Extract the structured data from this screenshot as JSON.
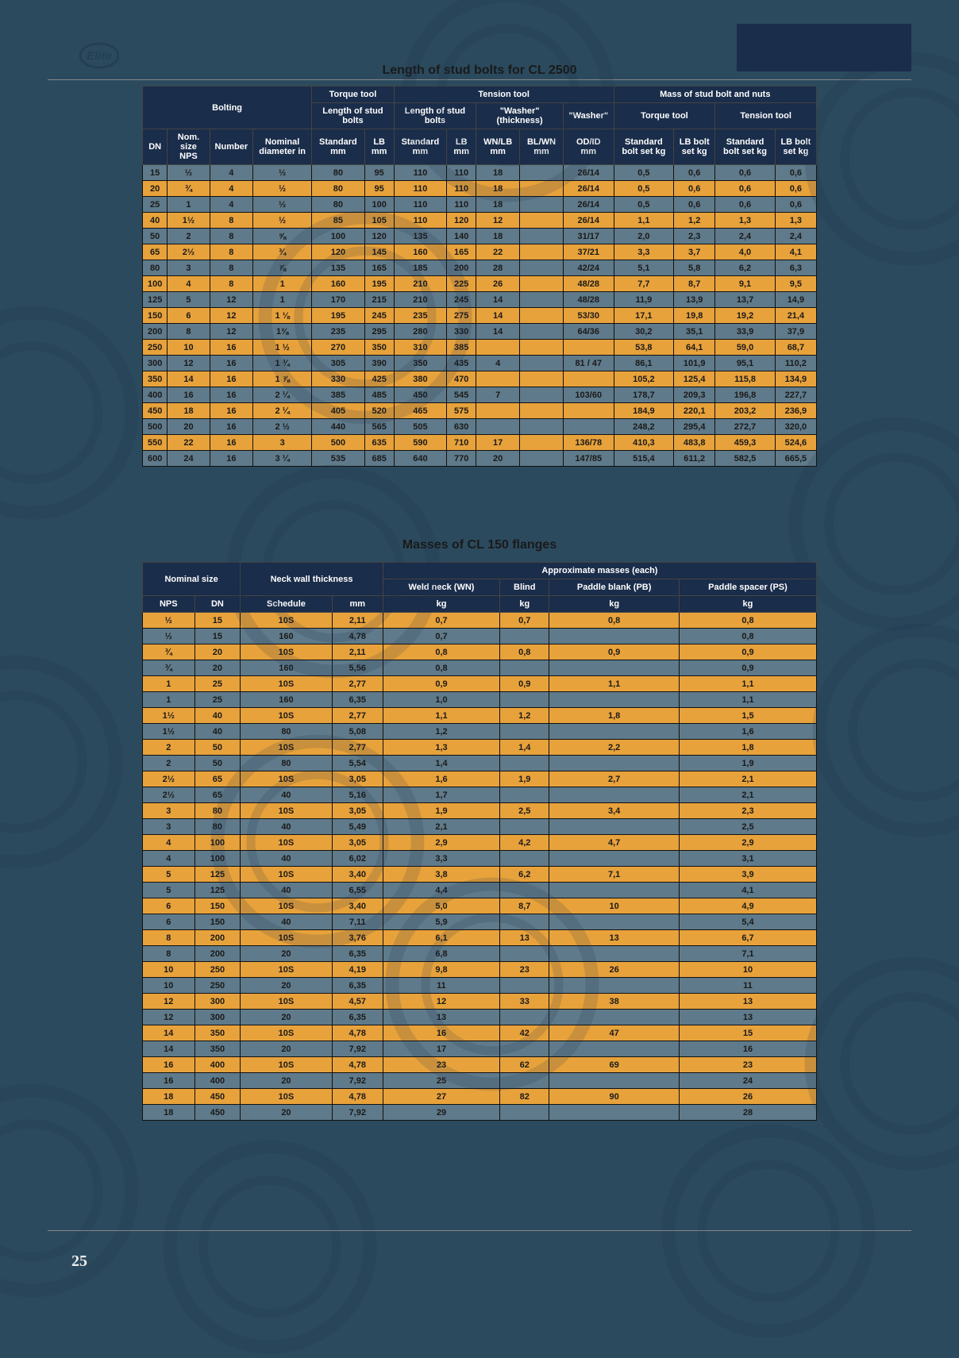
{
  "page_number": "25",
  "table1": {
    "title": "Length of stud bolts for CL 2500",
    "header_group1": [
      "Bolting",
      "Torque tool",
      "Tension tool",
      "Mass of stud bolt and nuts"
    ],
    "header_group2": [
      "Length of stud bolts",
      "Length of stud bolts",
      "\"Washer\" (thickness)",
      "\"Washer\"",
      "Torque tool",
      "Tension tool"
    ],
    "columns": [
      "DN",
      "Nom. size NPS",
      "Number",
      "Nominal diameter in",
      "Standard mm",
      "LB mm",
      "Standard mm",
      "LB mm",
      "WN/LB mm",
      "BL/WN mm",
      "OD/ID mm",
      "Standard bolt set kg",
      "LB bolt set kg",
      "Standard bolt set kg",
      "LB bolt set kg"
    ],
    "rows": [
      [
        "15",
        "½",
        "4",
        "½",
        "80",
        "95",
        "110",
        "110",
        "18",
        "",
        "26/14",
        "0,5",
        "0,6",
        "0,6",
        "0,6"
      ],
      [
        "20",
        "¾",
        "4",
        "½",
        "80",
        "95",
        "110",
        "110",
        "18",
        "",
        "26/14",
        "0,5",
        "0,6",
        "0,6",
        "0,6"
      ],
      [
        "25",
        "1",
        "4",
        "½",
        "80",
        "100",
        "110",
        "110",
        "18",
        "",
        "26/14",
        "0,5",
        "0,6",
        "0,6",
        "0,6"
      ],
      [
        "40",
        "1½",
        "8",
        "½",
        "85",
        "105",
        "110",
        "120",
        "12",
        "",
        "26/14",
        "1,1",
        "1,2",
        "1,3",
        "1,3"
      ],
      [
        "50",
        "2",
        "8",
        "⅝",
        "100",
        "120",
        "135",
        "140",
        "18",
        "",
        "31/17",
        "2,0",
        "2,3",
        "2,4",
        "2,4"
      ],
      [
        "65",
        "2½",
        "8",
        "¾",
        "120",
        "145",
        "160",
        "165",
        "22",
        "",
        "37/21",
        "3,3",
        "3,7",
        "4,0",
        "4,1"
      ],
      [
        "80",
        "3",
        "8",
        "⅞",
        "135",
        "165",
        "185",
        "200",
        "28",
        "",
        "42/24",
        "5,1",
        "5,8",
        "6,2",
        "6,3"
      ],
      [
        "100",
        "4",
        "8",
        "1",
        "160",
        "195",
        "210",
        "225",
        "26",
        "",
        "48/28",
        "7,7",
        "8,7",
        "9,1",
        "9,5"
      ],
      [
        "125",
        "5",
        "12",
        "1",
        "170",
        "215",
        "210",
        "245",
        "14",
        "",
        "48/28",
        "11,9",
        "13,9",
        "13,7",
        "14,9"
      ],
      [
        "150",
        "6",
        "12",
        "1 ⅛",
        "195",
        "245",
        "235",
        "275",
        "14",
        "",
        "53/30",
        "17,1",
        "19,8",
        "19,2",
        "21,4"
      ],
      [
        "200",
        "8",
        "12",
        "1⅜",
        "235",
        "295",
        "280",
        "330",
        "14",
        "",
        "64/36",
        "30,2",
        "35,1",
        "33,9",
        "37,9"
      ],
      [
        "250",
        "10",
        "16",
        "1 ½",
        "270",
        "350",
        "310",
        "385",
        "",
        "",
        "",
        "53,8",
        "64,1",
        "59,0",
        "68,7"
      ],
      [
        "300",
        "12",
        "16",
        "1 ¾",
        "305",
        "390",
        "350",
        "435",
        "4",
        "",
        "81 / 47",
        "86,1",
        "101,9",
        "95,1",
        "110,2"
      ],
      [
        "350",
        "14",
        "16",
        "1 ⅞",
        "330",
        "425",
        "380",
        "470",
        "",
        "",
        "",
        "105,2",
        "125,4",
        "115,8",
        "134,9"
      ],
      [
        "400",
        "16",
        "16",
        "2 ¼",
        "385",
        "485",
        "450",
        "545",
        "7",
        "",
        "103/60",
        "178,7",
        "209,3",
        "196,8",
        "227,7"
      ],
      [
        "450",
        "18",
        "16",
        "2 ¼",
        "405",
        "520",
        "465",
        "575",
        "",
        "",
        "",
        "184,9",
        "220,1",
        "203,2",
        "236,9"
      ],
      [
        "500",
        "20",
        "16",
        "2 ½",
        "440",
        "565",
        "505",
        "630",
        "",
        "",
        "",
        "248,2",
        "295,4",
        "272,7",
        "320,0"
      ],
      [
        "550",
        "22",
        "16",
        "3",
        "500",
        "635",
        "590",
        "710",
        "17",
        "",
        "136/78",
        "410,3",
        "483,8",
        "459,3",
        "524,6"
      ],
      [
        "600",
        "24",
        "16",
        "3 ¼",
        "535",
        "685",
        "640",
        "770",
        "20",
        "",
        "147/85",
        "515,4",
        "611,2",
        "582,5",
        "665,5"
      ]
    ]
  },
  "table2": {
    "title": "Masses of CL 150 flanges",
    "header_group1": [
      "Nominal size",
      "Neck wall thickness",
      "Approximate masses (each)"
    ],
    "header_sub": [
      "Weld neck (WN)",
      "Blind",
      "Paddle blank (PB)",
      "Paddle spacer (PS)"
    ],
    "columns": [
      "NPS",
      "DN",
      "Schedule",
      "mm",
      "kg",
      "kg",
      "kg",
      "kg"
    ],
    "rows": [
      [
        "½",
        "15",
        "10S",
        "2,11",
        "0,7",
        "0,7",
        "0,8",
        "0,8"
      ],
      [
        "½",
        "15",
        "160",
        "4,78",
        "0,7",
        "",
        "",
        "0,8"
      ],
      [
        "¾",
        "20",
        "10S",
        "2,11",
        "0,8",
        "0,8",
        "0,9",
        "0,9"
      ],
      [
        "¾",
        "20",
        "160",
        "5,56",
        "0,8",
        "",
        "",
        "0,9"
      ],
      [
        "1",
        "25",
        "10S",
        "2,77",
        "0,9",
        "0,9",
        "1,1",
        "1,1"
      ],
      [
        "1",
        "25",
        "160",
        "6,35",
        "1,0",
        "",
        "",
        "1,1"
      ],
      [
        "1½",
        "40",
        "10S",
        "2,77",
        "1,1",
        "1,2",
        "1,8",
        "1,5"
      ],
      [
        "1½",
        "40",
        "80",
        "5,08",
        "1,2",
        "",
        "",
        "1,6"
      ],
      [
        "2",
        "50",
        "10S",
        "2,77",
        "1,3",
        "1,4",
        "2,2",
        "1,8"
      ],
      [
        "2",
        "50",
        "80",
        "5,54",
        "1,4",
        "",
        "",
        "1,9"
      ],
      [
        "2½",
        "65",
        "10S",
        "3,05",
        "1,6",
        "1,9",
        "2,7",
        "2,1"
      ],
      [
        "2½",
        "65",
        "40",
        "5,16",
        "1,7",
        "",
        "",
        "2,1"
      ],
      [
        "3",
        "80",
        "10S",
        "3,05",
        "1,9",
        "2,5",
        "3,4",
        "2,3"
      ],
      [
        "3",
        "80",
        "40",
        "5,49",
        "2,1",
        "",
        "",
        "2,5"
      ],
      [
        "4",
        "100",
        "10S",
        "3,05",
        "2,9",
        "4,2",
        "4,7",
        "2,9"
      ],
      [
        "4",
        "100",
        "40",
        "6,02",
        "3,3",
        "",
        "",
        "3,1"
      ],
      [
        "5",
        "125",
        "10S",
        "3,40",
        "3,8",
        "6,2",
        "7,1",
        "3,9"
      ],
      [
        "5",
        "125",
        "40",
        "6,55",
        "4,4",
        "",
        "",
        "4,1"
      ],
      [
        "6",
        "150",
        "10S",
        "3,40",
        "5,0",
        "8,7",
        "10",
        "4,9"
      ],
      [
        "6",
        "150",
        "40",
        "7,11",
        "5,9",
        "",
        "",
        "5,4"
      ],
      [
        "8",
        "200",
        "10S",
        "3,76",
        "6,1",
        "13",
        "13",
        "6,7"
      ],
      [
        "8",
        "200",
        "20",
        "6,35",
        "6,8",
        "",
        "",
        "7,1"
      ],
      [
        "10",
        "250",
        "10S",
        "4,19",
        "9,8",
        "23",
        "26",
        "10"
      ],
      [
        "10",
        "250",
        "20",
        "6,35",
        "11",
        "",
        "",
        "11"
      ],
      [
        "12",
        "300",
        "10S",
        "4,57",
        "12",
        "33",
        "38",
        "13"
      ],
      [
        "12",
        "300",
        "20",
        "6,35",
        "13",
        "",
        "",
        "13"
      ],
      [
        "14",
        "350",
        "10S",
        "4,78",
        "16",
        "42",
        "47",
        "15"
      ],
      [
        "14",
        "350",
        "20",
        "7,92",
        "17",
        "",
        "",
        "16"
      ],
      [
        "16",
        "400",
        "10S",
        "4,78",
        "23",
        "62",
        "69",
        "23"
      ],
      [
        "16",
        "400",
        "20",
        "7,92",
        "25",
        "",
        "",
        "24"
      ],
      [
        "18",
        "450",
        "10S",
        "4,78",
        "27",
        "82",
        "90",
        "26"
      ],
      [
        "18",
        "450",
        "20",
        "7,92",
        "29",
        "",
        "",
        "28"
      ]
    ]
  }
}
